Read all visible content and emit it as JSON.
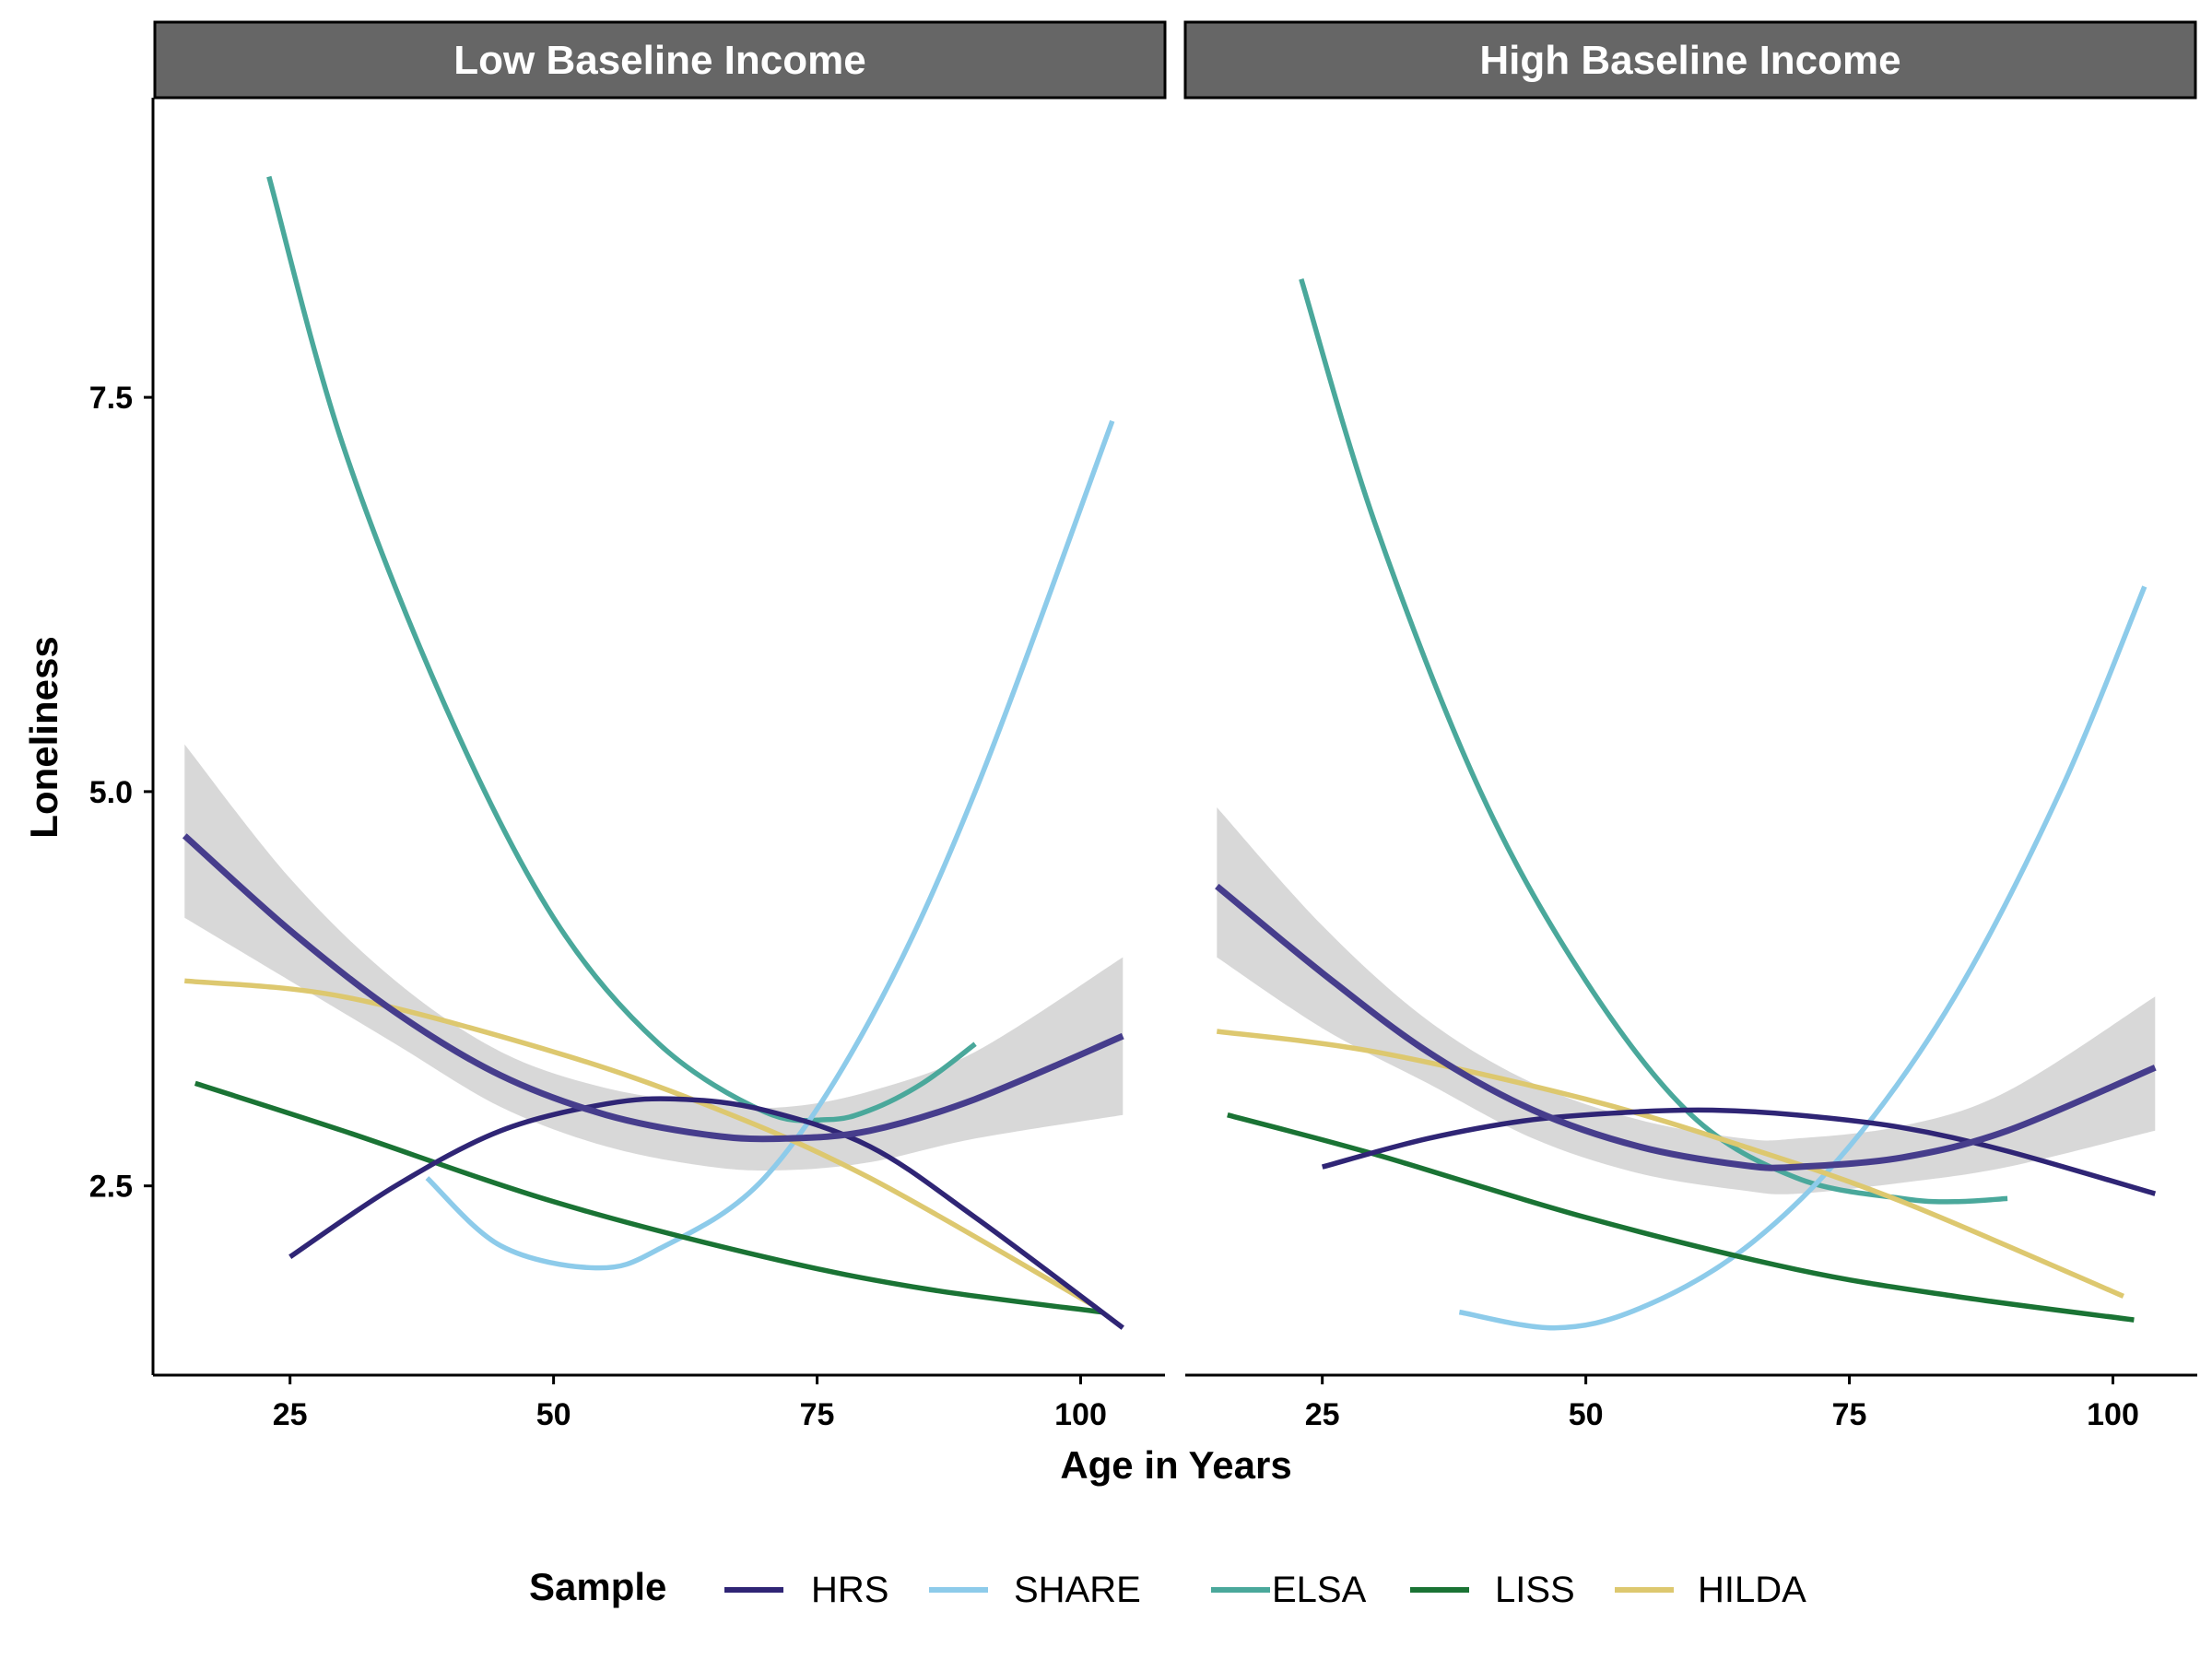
{
  "chart_data": {
    "type": "line",
    "xlabel": "Age in Years",
    "ylabel": "Loneliness",
    "xlim": [
      12,
      108
    ],
    "ylim": [
      1.3,
      9.4
    ],
    "x_ticks": [
      25,
      50,
      75,
      100
    ],
    "y_ticks": [
      2.5,
      5.0,
      7.5
    ],
    "x_tick_labels": [
      "25",
      "50",
      "75",
      "100"
    ],
    "y_tick_labels": [
      "2.5",
      "5.0",
      "7.5"
    ],
    "grid": false,
    "legend": {
      "title": "Sample",
      "position": "bottom",
      "entries": [
        "HRS",
        "SHARE",
        "ELSA",
        "LISS",
        "HILDA"
      ]
    },
    "colors": {
      "HRS": "#2f2575",
      "SHARE": "#8dcbea",
      "ELSA": "#4aa89b",
      "LISS": "#1a7334",
      "HILDA": "#ddc86f",
      "pooled": "#463d8c",
      "ribbon": "#d6d6d6",
      "strip": "#666666"
    },
    "panels": [
      {
        "title": "Low Baseline Income",
        "series": [
          {
            "name": "ELSA",
            "x": [
              23,
              30,
              40,
              50,
              60,
              70,
              76,
              80,
              85,
              90
            ],
            "y": [
              8.9,
              7.2,
              5.5,
              4.2,
              3.4,
              2.97,
              2.92,
              2.98,
              3.15,
              3.4
            ]
          },
          {
            "name": "SHARE",
            "x": [
              38,
              45,
              54,
              60,
              70,
              80,
              90,
              103
            ],
            "y": [
              2.55,
              2.12,
              1.98,
              2.1,
              2.55,
              3.55,
              5.0,
              7.35
            ]
          },
          {
            "name": "LISS",
            "x": [
              16,
              30,
              50,
              70,
              85,
              102
            ],
            "y": [
              3.15,
              2.85,
              2.4,
              2.05,
              1.85,
              1.7
            ]
          },
          {
            "name": "HILDA",
            "x": [
              15,
              30,
              50,
              65,
              80,
              101
            ],
            "y": [
              3.8,
              3.7,
              3.35,
              3.0,
              2.55,
              1.75
            ]
          },
          {
            "name": "HRS",
            "x": [
              25,
              35,
              45,
              55,
              62,
              70,
              80,
              90,
              104
            ],
            "y": [
              2.05,
              2.5,
              2.85,
              3.02,
              3.05,
              2.98,
              2.75,
              2.3,
              1.6
            ]
          },
          {
            "name": "Pooled",
            "x": [
              15,
              25,
              35,
              45,
              55,
              65,
              72,
              80,
              90,
              104
            ],
            "y": [
              4.72,
              4.12,
              3.6,
              3.2,
              2.95,
              2.82,
              2.8,
              2.85,
              3.05,
              3.45
            ],
            "ci_lower": [
              4.2,
              3.8,
              3.4,
              3.0,
              2.75,
              2.62,
              2.6,
              2.65,
              2.8,
              2.95
            ],
            "ci_upper": [
              5.3,
              4.45,
              3.8,
              3.35,
              3.12,
              3.02,
              3.0,
              3.1,
              3.35,
              3.95
            ]
          }
        ]
      },
      {
        "title": "High Baseline Income",
        "series": [
          {
            "name": "ELSA",
            "x": [
              23,
              30,
              40,
              50,
              60,
              70,
              80,
              85,
              90
            ],
            "y": [
              8.25,
              6.7,
              5.0,
              3.8,
              2.95,
              2.55,
              2.42,
              2.4,
              2.42
            ]
          },
          {
            "name": "SHARE",
            "x": [
              38,
              47,
              55,
              65,
              75,
              85,
              95,
              103
            ],
            "y": [
              1.7,
              1.6,
              1.72,
              2.1,
              2.75,
              3.7,
              5.0,
              6.3
            ]
          },
          {
            "name": "LISS",
            "x": [
              16,
              30,
              50,
              70,
              85,
              102
            ],
            "y": [
              2.95,
              2.7,
              2.3,
              1.97,
              1.8,
              1.65
            ]
          },
          {
            "name": "HILDA",
            "x": [
              15,
              30,
              50,
              65,
              80,
              101
            ],
            "y": [
              3.48,
              3.35,
              3.05,
              2.75,
              2.4,
              1.8
            ]
          },
          {
            "name": "HRS",
            "x": [
              25,
              35,
              45,
              55,
              62,
              70,
              80,
              90,
              104
            ],
            "y": [
              2.62,
              2.8,
              2.92,
              2.97,
              2.98,
              2.95,
              2.87,
              2.72,
              2.45
            ]
          },
          {
            "name": "Pooled",
            "x": [
              15,
              25,
              35,
              45,
              55,
              65,
              70,
              80,
              90,
              104
            ],
            "y": [
              4.4,
              3.85,
              3.35,
              2.98,
              2.75,
              2.63,
              2.62,
              2.68,
              2.85,
              3.25
            ],
            "ci_lower": [
              3.95,
              3.5,
              3.15,
              2.8,
              2.58,
              2.47,
              2.45,
              2.52,
              2.62,
              2.85
            ],
            "ci_upper": [
              4.9,
              4.15,
              3.55,
              3.15,
              2.92,
              2.8,
              2.8,
              2.88,
              3.1,
              3.7
            ]
          }
        ]
      }
    ]
  }
}
